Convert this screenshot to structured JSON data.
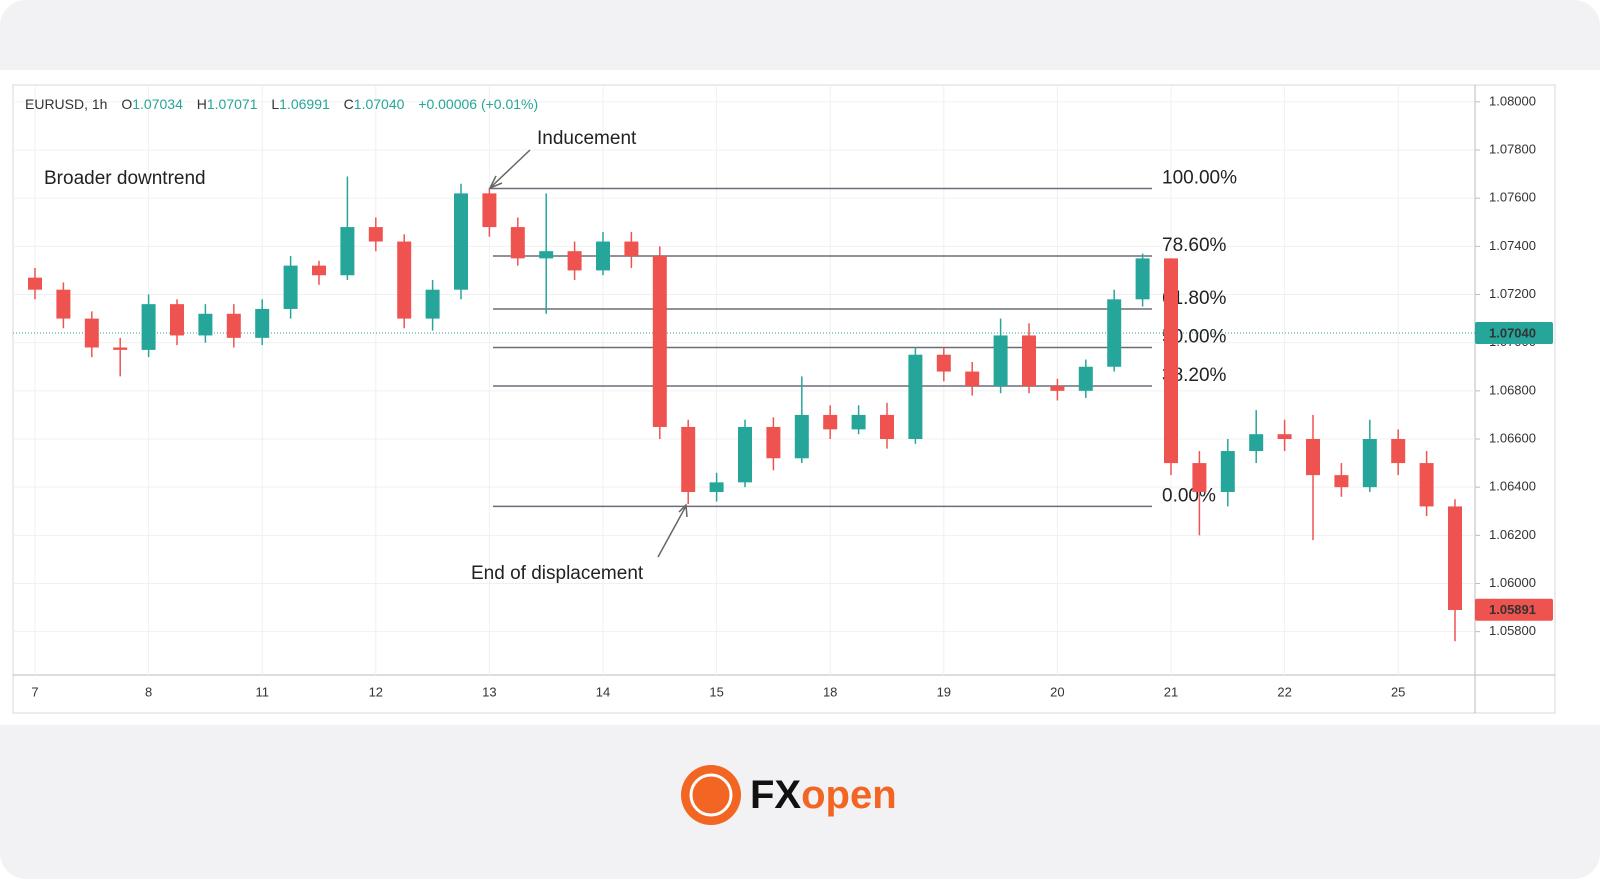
{
  "chart_data": {
    "type": "candlestick",
    "header": {
      "symbol": "EURUSD, 1h",
      "open_label": "O",
      "open": "1.07034",
      "high_label": "H",
      "high": "1.07071",
      "low_label": "L",
      "low": "1.06991",
      "close_label": "C",
      "close": "1.07040",
      "change": "+0.00006 (+0.01%)"
    },
    "annotations": [
      "Broader downtrend",
      "Inducement",
      "End of displacement"
    ],
    "categories": [
      "7",
      null,
      null,
      null,
      "8",
      null,
      null,
      null,
      "11",
      null,
      null,
      null,
      "12",
      null,
      null,
      null,
      "13",
      null,
      null,
      null,
      "14",
      null,
      null,
      null,
      "15",
      null,
      null,
      null,
      "18",
      null,
      null,
      null,
      "19",
      null,
      null,
      null,
      "20",
      null,
      null,
      null,
      "21",
      null,
      null,
      null,
      "22",
      null,
      null,
      null,
      "25",
      null,
      null
    ],
    "open": [
      1.0727,
      1.0722,
      1.071,
      1.0698,
      1.0697,
      1.0716,
      1.0703,
      1.0712,
      1.0702,
      1.0714,
      1.0732,
      1.0728,
      1.0748,
      1.0742,
      1.071,
      1.0722,
      1.0762,
      1.0748,
      1.0735,
      1.0738,
      1.073,
      1.0742,
      1.0736,
      1.0665,
      1.0638,
      1.0642,
      1.0665,
      1.0652,
      1.067,
      1.0664,
      1.067,
      1.066,
      1.0695,
      1.0688,
      1.0682,
      1.0703,
      1.0682,
      1.068,
      1.069,
      1.0718,
      1.0735,
      1.065,
      1.0638,
      1.0655,
      1.0662,
      1.066,
      1.0645,
      1.064,
      1.066,
      1.065,
      1.0632
    ],
    "high": [
      1.0731,
      1.0725,
      1.0713,
      1.0702,
      1.072,
      1.0718,
      1.0716,
      1.0716,
      1.0718,
      1.0736,
      1.0734,
      1.0769,
      1.0752,
      1.0745,
      1.0726,
      1.0766,
      1.0764,
      1.0752,
      1.0762,
      1.0742,
      1.0746,
      1.0746,
      1.074,
      1.0668,
      1.0646,
      1.0668,
      1.0669,
      1.0686,
      1.0674,
      1.0674,
      1.0675,
      1.0698,
      1.0698,
      1.0692,
      1.071,
      1.0708,
      1.0685,
      1.0693,
      1.0722,
      1.0737,
      1.0735,
      1.0655,
      1.066,
      1.0672,
      1.0668,
      1.067,
      1.065,
      1.0668,
      1.0664,
      1.0655,
      1.0635
    ],
    "low": [
      1.0718,
      1.0706,
      1.0694,
      1.0686,
      1.0694,
      1.0699,
      1.07,
      1.0698,
      1.0699,
      1.071,
      1.0724,
      1.0726,
      1.0738,
      1.0706,
      1.0705,
      1.0718,
      1.0744,
      1.0732,
      1.0712,
      1.0726,
      1.0728,
      1.0731,
      1.066,
      1.0633,
      1.0634,
      1.064,
      1.0647,
      1.065,
      1.066,
      1.0662,
      1.0656,
      1.0658,
      1.0684,
      1.0678,
      1.0679,
      1.0679,
      1.0676,
      1.0677,
      1.0688,
      1.0715,
      1.0645,
      1.062,
      1.0632,
      1.065,
      1.0655,
      1.0618,
      1.0636,
      1.0638,
      1.0645,
      1.0628,
      1.0576
    ],
    "close": [
      1.0722,
      1.071,
      1.0698,
      1.0697,
      1.0716,
      1.0703,
      1.0712,
      1.0702,
      1.0714,
      1.0732,
      1.0728,
      1.0748,
      1.0742,
      1.071,
      1.0722,
      1.0762,
      1.0748,
      1.0735,
      1.0738,
      1.073,
      1.0742,
      1.0736,
      1.0665,
      1.0638,
      1.0642,
      1.0665,
      1.0652,
      1.067,
      1.0664,
      1.067,
      1.066,
      1.0695,
      1.0688,
      1.0682,
      1.0703,
      1.0682,
      1.068,
      1.069,
      1.0718,
      1.0735,
      1.065,
      1.0638,
      1.0655,
      1.0662,
      1.066,
      1.0645,
      1.064,
      1.066,
      1.065,
      1.0632,
      1.0589
    ],
    "up_color": "#26a69a",
    "down_color": "#ef5350",
    "ylim": [
      1.0562,
      1.0807
    ],
    "yticks": [
      {
        "value": 1.08,
        "label": "1.08000"
      },
      {
        "value": 1.078,
        "label": "1.07800"
      },
      {
        "value": 1.076,
        "label": "1.07600"
      },
      {
        "value": 1.074,
        "label": "1.07400"
      },
      {
        "value": 1.072,
        "label": "1.07200"
      },
      {
        "value": 1.07,
        "label": "1.07000"
      },
      {
        "value": 1.068,
        "label": "1.06800"
      },
      {
        "value": 1.066,
        "label": "1.06600"
      },
      {
        "value": 1.064,
        "label": "1.06400"
      },
      {
        "value": 1.062,
        "label": "1.06200"
      },
      {
        "value": 1.06,
        "label": "1.06000"
      },
      {
        "value": 1.058,
        "label": "1.05800"
      }
    ],
    "grid": true,
    "fib_levels": [
      {
        "price": 1.0764,
        "label": "100.00%"
      },
      {
        "price": 1.0736,
        "label": "78.60%"
      },
      {
        "price": 1.0714,
        "label": "61.80%"
      },
      {
        "price": 1.0698,
        "label": "50.00%"
      },
      {
        "price": 1.0682,
        "label": "38.20%"
      },
      {
        "price": 1.0632,
        "label": "0.00%"
      }
    ],
    "price_tags": [
      {
        "value": 1.0704,
        "label": "1.07040",
        "color": "#26a69a",
        "line": true
      },
      {
        "value": 1.05891,
        "label": "1.05891",
        "color": "#ef5350",
        "line": false
      }
    ]
  },
  "logo": {
    "part1": "FX",
    "part2": "open"
  }
}
